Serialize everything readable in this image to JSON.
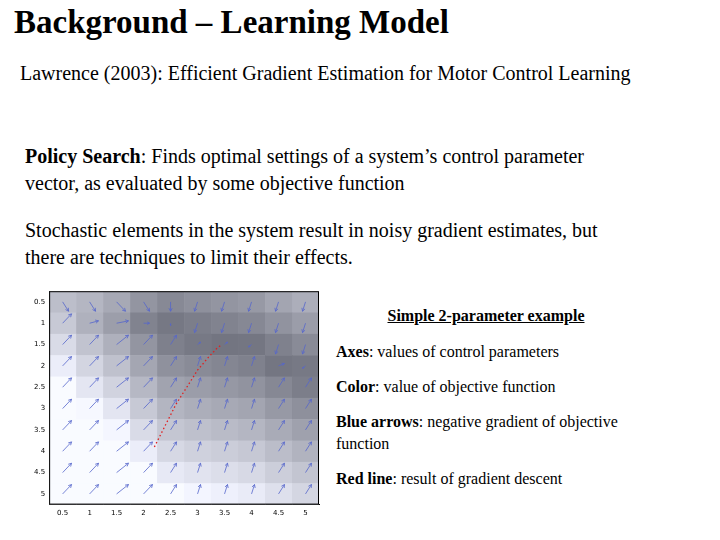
{
  "title": "Background – Learning Model",
  "reference": "Lawrence (2003): Efficient Gradient Estimation for Motor Control Learning",
  "paragraphs": [
    {
      "term": "Policy Search",
      "text": ": Finds optimal settings of a system’s control parameter vector, as evaluated by some objective function"
    },
    {
      "text": "Stochastic elements in the system result in noisy gradient estimates, but there are techniques to limit their effects."
    }
  ],
  "caption": {
    "heading": "Simple 2-parameter example",
    "items": [
      {
        "term": "Axes",
        "text": ": values of control parameters"
      },
      {
        "term": "Color",
        "text": ": value of objective function"
      },
      {
        "term": "Blue arrows",
        "text": ": negative gradient of objective function"
      },
      {
        "term": "Red line",
        "text": ": result of gradient descent"
      }
    ]
  },
  "chart_data": {
    "type": "heatmap",
    "x": [
      0.5,
      1,
      1.5,
      2,
      2.5,
      3,
      3.5,
      4,
      4.5,
      5
    ],
    "y": [
      0.5,
      1,
      1.5,
      2,
      2.5,
      3,
      3.5,
      4,
      4.5,
      5
    ],
    "cells": [
      [
        0.62,
        0.57,
        0.49,
        0.36,
        0.29,
        0.33,
        0.36,
        0.39,
        0.46,
        0.52
      ],
      [
        0.69,
        0.54,
        0.42,
        0.25,
        0.18,
        0.22,
        0.25,
        0.28,
        0.35,
        0.41
      ],
      [
        0.8,
        0.65,
        0.53,
        0.36,
        0.23,
        0.19,
        0.16,
        0.17,
        0.24,
        0.3
      ],
      [
        0.91,
        0.76,
        0.64,
        0.47,
        0.34,
        0.3,
        0.27,
        0.24,
        0.17,
        0.19
      ],
      [
        1,
        0.87,
        0.75,
        0.58,
        0.45,
        0.41,
        0.38,
        0.35,
        0.28,
        0.22
      ],
      [
        1,
        0.98,
        0.86,
        0.69,
        0.56,
        0.52,
        0.49,
        0.46,
        0.39,
        0.33
      ],
      [
        1,
        1,
        0.97,
        0.8,
        0.67,
        0.63,
        0.6,
        0.57,
        0.5,
        0.44
      ],
      [
        1,
        1,
        1,
        0.91,
        0.78,
        0.74,
        0.71,
        0.68,
        0.61,
        0.55
      ],
      [
        1,
        1,
        1,
        1,
        0.89,
        0.85,
        0.82,
        0.79,
        0.72,
        0.66
      ],
      [
        1,
        1,
        1,
        1,
        1,
        0.96,
        0.93,
        0.9,
        0.83,
        0.77
      ]
    ],
    "arrows": {
      "color": "#5566cc",
      "u": [
        [
          0.1,
          0.1,
          0.15,
          0.1,
          0,
          -0.05,
          -0.05,
          -0.05,
          -0.05,
          -0.05
        ],
        [
          0.15,
          0.15,
          0.2,
          0.1,
          0,
          -0.05,
          -0.05,
          -0.05,
          -0.05,
          -0.05
        ],
        [
          0.15,
          0.15,
          0.2,
          0.15,
          0.1,
          0.05,
          0.05,
          -0.05,
          -0.05,
          -0.05
        ],
        [
          0.15,
          0.15,
          0.2,
          0.15,
          0.1,
          0.05,
          0.05,
          0.05,
          0.1,
          -0.05
        ],
        [
          0.15,
          0.15,
          0.2,
          0.15,
          0.1,
          0.05,
          0.05,
          0.05,
          0.1,
          0.1
        ],
        [
          0.15,
          0.15,
          0.2,
          0.15,
          0.1,
          0.05,
          0.05,
          0.05,
          0.1,
          0.1
        ],
        [
          0.15,
          0.15,
          0.2,
          0.15,
          0.1,
          0.05,
          0.05,
          0.05,
          0.1,
          0.1
        ],
        [
          0.15,
          0.15,
          0.2,
          0.15,
          0.1,
          0.05,
          0.05,
          0.05,
          0.1,
          0.1
        ],
        [
          0.15,
          0.15,
          0.2,
          0.15,
          0.1,
          0.05,
          0.05,
          0.05,
          0.1,
          0.1
        ],
        [
          0.15,
          0.15,
          0.2,
          0.15,
          0.1,
          0.05,
          0.05,
          0.05,
          0.1,
          0.1
        ]
      ],
      "v": [
        [
          0.2,
          0.2,
          0.2,
          0.2,
          0.2,
          0.2,
          0.2,
          0.2,
          0.2,
          0.2
        ],
        [
          -0.2,
          -0.05,
          -0.05,
          0,
          0.05,
          0.2,
          0.2,
          0.2,
          0.2,
          0.2
        ],
        [
          -0.2,
          -0.2,
          -0.2,
          -0.2,
          -0.2,
          -0.05,
          -0.05,
          0.05,
          0.2,
          0.2
        ],
        [
          -0.2,
          -0.2,
          -0.2,
          -0.2,
          -0.2,
          -0.2,
          -0.2,
          -0.2,
          -0.05,
          0.05
        ],
        [
          -0.2,
          -0.2,
          -0.2,
          -0.2,
          -0.2,
          -0.2,
          -0.2,
          -0.2,
          -0.2,
          -0.2
        ],
        [
          -0.2,
          -0.2,
          -0.2,
          -0.2,
          -0.2,
          -0.2,
          -0.2,
          -0.2,
          -0.2,
          -0.2
        ],
        [
          -0.2,
          -0.2,
          -0.2,
          -0.2,
          -0.2,
          -0.2,
          -0.2,
          -0.2,
          -0.2,
          -0.2
        ],
        [
          -0.2,
          -0.2,
          -0.2,
          -0.2,
          -0.2,
          -0.2,
          -0.2,
          -0.2,
          -0.2,
          -0.2
        ],
        [
          -0.2,
          -0.2,
          -0.2,
          -0.2,
          -0.2,
          -0.2,
          -0.2,
          -0.2,
          -0.2,
          -0.2
        ],
        [
          -0.2,
          -0.2,
          -0.2,
          -0.2,
          -0.2,
          -0.2,
          -0.2,
          -0.2,
          -0.2,
          -0.2
        ]
      ]
    },
    "path": {
      "color": "#e02020",
      "line_style": "dotted",
      "x": [
        2.2,
        2.4,
        2.6,
        2.8,
        3.0,
        3.2,
        3.35,
        3.45
      ],
      "y": [
        3.9,
        3.4,
        2.9,
        2.5,
        2.1,
        1.8,
        1.6,
        1.5
      ]
    },
    "xlim": [
      0.25,
      5.25
    ],
    "ylim": [
      0.25,
      5.25
    ],
    "xticks": [
      0.5,
      1,
      1.5,
      2,
      2.5,
      3,
      3.5,
      4,
      4.5,
      5
    ],
    "yticks": [
      0.5,
      1,
      1.5,
      2,
      2.5,
      3,
      3.5,
      4,
      4.5,
      5
    ],
    "grid": false
  }
}
